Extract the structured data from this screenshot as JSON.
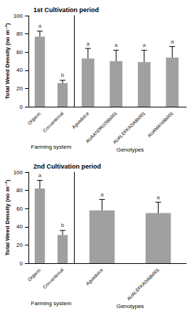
{
  "chart_data": [
    {
      "type": "bar",
      "title": "1st Cultivation period",
      "x_label": "Farming system",
      "y_label": "Total Weed Density (no m⁻²)",
      "categories": [
        "Organic",
        "Conventional"
      ],
      "values": [
        77,
        26
      ],
      "errors": [
        6,
        3
      ],
      "letters": [
        "a",
        "b"
      ],
      "color": "#a0a0a0",
      "ylim": [
        0,
        100
      ],
      "yticks": [
        0,
        20,
        40,
        60,
        80,
        100
      ],
      "tick_labels": true
    },
    {
      "type": "bar",
      "x_label": "Genotypes",
      "categories": [
        "Aguadulce",
        "AUAANDROS8b001",
        "AUALEFKADA8b001",
        "AUAMANI8b001"
      ],
      "values": [
        53,
        50,
        49,
        54
      ],
      "errors": [
        11,
        12,
        13,
        12
      ],
      "letters": [
        "a",
        "a",
        "a",
        "a"
      ],
      "color": "#a0a0a0",
      "ylim": [
        0,
        100
      ],
      "yticks": [
        0,
        20,
        40,
        60,
        80,
        100
      ],
      "tick_labels": "x"
    },
    {
      "type": "bar",
      "title": "2nd Cultivation period",
      "x_label": "Farming system",
      "y_label": "Total Weed Density (no m⁻²)",
      "categories": [
        "Organic",
        "Conventional"
      ],
      "values": [
        82,
        31
      ],
      "errors": [
        9,
        5
      ],
      "letters": [
        "a",
        "b"
      ],
      "color": "#a0a0a0",
      "ylim": [
        0,
        100
      ],
      "yticks": [
        0,
        20,
        40,
        60,
        80,
        100
      ],
      "tick_labels": true
    },
    {
      "type": "bar",
      "x_label": "Genotypes",
      "categories": [
        "Aguadulce",
        "AUALEFKADA8b001"
      ],
      "values": [
        58,
        55
      ],
      "errors": [
        12,
        12
      ],
      "letters": [
        "a",
        "a"
      ],
      "color": "#a0a0a0",
      "ylim": [
        0,
        100
      ],
      "yticks": [
        0,
        20,
        40,
        60,
        80,
        100
      ],
      "tick_labels": "x"
    }
  ]
}
